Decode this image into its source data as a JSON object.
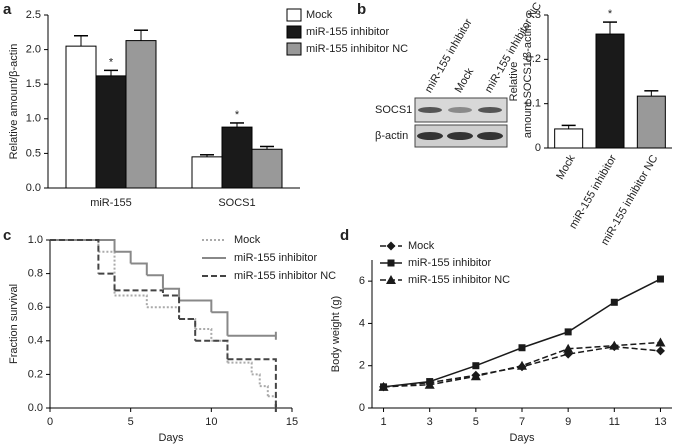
{
  "chart_data": [
    {
      "type": "bar",
      "panel": "a",
      "ylabel": [
        "Relative amount/β-actin"
      ],
      "categories": [
        "miR-155",
        "SOCS1"
      ],
      "series": [
        {
          "name": "Mock",
          "color": "#ffffff",
          "values": [
            2.05,
            0.45
          ],
          "errors": [
            0.15,
            0.03
          ]
        },
        {
          "name": "miR-155 inhibitor",
          "color": "#1a1a1a",
          "values": [
            1.62,
            0.88
          ],
          "errors": [
            0.08,
            0.06
          ],
          "significance": [
            "*",
            "*"
          ]
        },
        {
          "name": "miR-155 inhibitor NC",
          "color": "#999999",
          "values": [
            2.13,
            0.56
          ],
          "errors": [
            0.15,
            0.04
          ]
        }
      ],
      "ylim": [
        0,
        2.5
      ],
      "yticks": [
        {
          "value": 0,
          "label": "0.0"
        },
        {
          "value": 0.5,
          "label": "0.5"
        },
        {
          "value": 1,
          "label": "1.0"
        },
        {
          "value": 1.5,
          "label": "1.5"
        },
        {
          "value": 2,
          "label": "2.0"
        },
        {
          "value": 2.5,
          "label": "2.5"
        }
      ],
      "legend": "upper right"
    },
    {
      "type": "bar",
      "panel": "b",
      "ylabel": [
        "Relative",
        "amount SOCS1/β-actin"
      ],
      "blot": {
        "lanes": [
          "miR-155 inhibitor",
          "Mock",
          "miR-155 inhibitor NC"
        ],
        "rows": [
          "SOCS1",
          "β-actin"
        ]
      },
      "categories": [
        "Mock",
        "miR-155 inhibitor",
        "miR-155 inhibitor NC"
      ],
      "values": [
        0.043,
        0.257,
        0.117
      ],
      "errors": [
        0.008,
        0.027,
        0.012
      ],
      "colors": [
        "#ffffff",
        "#1a1a1a",
        "#999999"
      ],
      "significance": [
        null,
        "*",
        null
      ],
      "ylim": [
        0,
        0.3
      ],
      "yticks": [
        0,
        0.1,
        0.2,
        0.3
      ]
    },
    {
      "type": "step",
      "panel": "c",
      "xlabel": "Days",
      "ylabel": [
        "Fraction survival"
      ],
      "series": [
        {
          "name": "Mock",
          "color": "#aaaaaa",
          "line_style": "dotted",
          "x": [
            0,
            3,
            4,
            6,
            8,
            9,
            10,
            11,
            12.5,
            13,
            13.5,
            14
          ],
          "values": [
            1,
            0.93,
            0.67,
            0.6,
            0.53,
            0.47,
            0.4,
            0.27,
            0.2,
            0.13,
            0.07,
            0
          ]
        },
        {
          "name": "miR-155 inhibitor",
          "color": "#888888",
          "line_style": "solid",
          "x": [
            0,
            4,
            5,
            6,
            7,
            8,
            10,
            11,
            14
          ],
          "values": [
            1,
            0.93,
            0.86,
            0.79,
            0.71,
            0.64,
            0.57,
            0.43,
            0.43
          ]
        },
        {
          "name": "miR-155 inhibitor NC",
          "color": "#444444",
          "line_style": "dashed",
          "x": [
            0,
            3,
            4,
            7,
            8,
            9,
            11,
            14
          ],
          "values": [
            1,
            0.8,
            0.7,
            0.67,
            0.53,
            0.4,
            0.29,
            0
          ]
        }
      ],
      "xlim": [
        0,
        15
      ],
      "xticks": [
        0,
        5,
        10,
        15
      ],
      "ylim": [
        0,
        1
      ],
      "yticks": [
        {
          "value": 0,
          "label": "0.0"
        },
        {
          "value": 0.2,
          "label": "0.2"
        },
        {
          "value": 0.4,
          "label": "0.4"
        },
        {
          "value": 0.6,
          "label": "0.6"
        },
        {
          "value": 0.8,
          "label": "0.8"
        },
        {
          "value": 1,
          "label": "1.0"
        }
      ],
      "legend": "upper right"
    },
    {
      "type": "line",
      "panel": "d",
      "xlabel": "Days",
      "ylabel": [
        "Body weight (g)"
      ],
      "x": [
        1,
        3,
        5,
        7,
        9,
        11,
        13
      ],
      "series": [
        {
          "name": "Mock",
          "color": "#1a1a1a",
          "line_style": "dashed",
          "marker": "diamond",
          "values": [
            1.0,
            1.2,
            1.55,
            1.95,
            2.55,
            2.9,
            2.7
          ]
        },
        {
          "name": "miR-155 inhibitor",
          "color": "#1a1a1a",
          "line_style": "solid",
          "marker": "square",
          "values": [
            1.0,
            1.25,
            2.0,
            2.85,
            3.6,
            5.0,
            6.1
          ]
        },
        {
          "name": "miR-155 inhibitor NC",
          "color": "#1a1a1a",
          "line_style": "dashed",
          "marker": "triangle",
          "values": [
            1.0,
            1.1,
            1.5,
            2.0,
            2.8,
            2.95,
            3.1
          ]
        }
      ],
      "xlim": [
        0.5,
        13.5
      ],
      "xticks": [
        1,
        3,
        5,
        7,
        9,
        11,
        13
      ],
      "ylim": [
        0,
        7
      ],
      "yticks": [
        0,
        2,
        4,
        6
      ],
      "legend": "upper left"
    }
  ]
}
